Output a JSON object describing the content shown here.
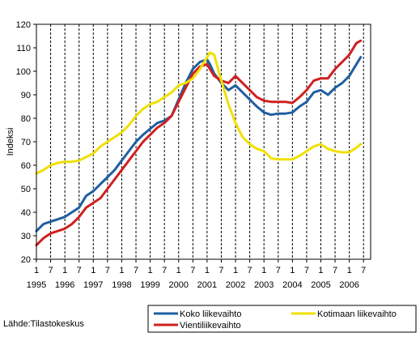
{
  "chart_data": {
    "type": "line",
    "title": "",
    "ylabel": "Indeksi",
    "xlabel": "",
    "ylim": [
      20,
      120
    ],
    "yticks": [
      20,
      30,
      40,
      50,
      60,
      70,
      80,
      90,
      100,
      110,
      120
    ],
    "x_start": 1995.0,
    "x_end": 2006.75,
    "x_tick_labels": [
      "1",
      "7",
      "1",
      "7",
      "1",
      "7",
      "1",
      "7",
      "1",
      "7",
      "1",
      "7",
      "1",
      "7",
      "1",
      "7",
      "1",
      "7",
      "1",
      "7",
      "1",
      "7",
      "1",
      "7"
    ],
    "x_year_labels": [
      "1995",
      "1996",
      "1997",
      "1998",
      "1999",
      "2000",
      "2001",
      "2002",
      "2003",
      "2004",
      "2005",
      "2006"
    ],
    "grid": "vertical-dashed",
    "legend_position": "bottom",
    "source": "Lähde:Tilastokeskus",
    "series": [
      {
        "name": "Koko liikevaihto",
        "color": "#1f5fa0",
        "x": [
          1995.0,
          1995.25,
          1995.5,
          1995.75,
          1996.0,
          1996.25,
          1996.5,
          1996.75,
          1997.0,
          1997.25,
          1997.5,
          1997.75,
          1998.0,
          1998.25,
          1998.5,
          1998.75,
          1999.0,
          1999.25,
          1999.5,
          1999.75,
          2000.0,
          2000.25,
          2000.5,
          2000.75,
          2001.0,
          2001.1,
          2001.25,
          2001.5,
          2001.75,
          2002.0,
          2002.25,
          2002.5,
          2002.75,
          2003.0,
          2003.25,
          2003.5,
          2003.75,
          2004.0,
          2004.25,
          2004.5,
          2004.75,
          2005.0,
          2005.25,
          2005.5,
          2005.75,
          2006.0,
          2006.25,
          2006.4
        ],
        "y": [
          32,
          35,
          36,
          37,
          38,
          40,
          42,
          47,
          49,
          52,
          55,
          58,
          62,
          66,
          70,
          73,
          75.5,
          78,
          79,
          81,
          88,
          95,
          101,
          104,
          105,
          103,
          99,
          95,
          92,
          94,
          91,
          88,
          85,
          82.5,
          81.5,
          82,
          82,
          82.5,
          85,
          87,
          91,
          92,
          90,
          93,
          95,
          98,
          103,
          106
        ]
      },
      {
        "name": "Vientiliikevaihto",
        "color": "#d02020",
        "x": [
          1995.0,
          1995.25,
          1995.5,
          1995.75,
          1996.0,
          1996.25,
          1996.5,
          1996.75,
          1997.0,
          1997.25,
          1997.5,
          1997.75,
          1998.0,
          1998.25,
          1998.5,
          1998.75,
          1999.0,
          1999.25,
          1999.5,
          1999.75,
          2000.0,
          2000.25,
          2000.5,
          2000.75,
          2001.0,
          2001.1,
          2001.25,
          2001.5,
          2001.75,
          2002.0,
          2002.25,
          2002.5,
          2002.75,
          2003.0,
          2003.25,
          2003.5,
          2003.75,
          2004.0,
          2004.25,
          2004.5,
          2004.75,
          2005.0,
          2005.25,
          2005.5,
          2005.75,
          2006.0,
          2006.25,
          2006.4
        ],
        "y": [
          26,
          29,
          31,
          32,
          33,
          35,
          38,
          42,
          44,
          46,
          50,
          54,
          58,
          62,
          66,
          70,
          73,
          76,
          78,
          81,
          87,
          93,
          99,
          102,
          103,
          101,
          98,
          96,
          95,
          98,
          95,
          92,
          89,
          87.5,
          87,
          87,
          87,
          86.5,
          89,
          92,
          96,
          97,
          97,
          101,
          104,
          107,
          112,
          113
        ]
      },
      {
        "name": "Kotimaan liikevaihto",
        "color": "#f0e000",
        "x": [
          1995.0,
          1995.25,
          1995.5,
          1995.75,
          1996.0,
          1996.25,
          1996.5,
          1996.75,
          1997.0,
          1997.25,
          1997.5,
          1997.75,
          1998.0,
          1998.25,
          1998.5,
          1998.75,
          1999.0,
          1999.25,
          1999.5,
          1999.75,
          2000.0,
          2000.25,
          2000.5,
          2000.75,
          2001.0,
          2001.1,
          2001.25,
          2001.5,
          2001.75,
          2002.0,
          2002.25,
          2002.5,
          2002.75,
          2003.0,
          2003.25,
          2003.5,
          2003.75,
          2004.0,
          2004.25,
          2004.5,
          2004.75,
          2005.0,
          2005.25,
          2005.5,
          2005.75,
          2006.0,
          2006.25,
          2006.4
        ],
        "y": [
          56.5,
          58,
          60,
          61,
          61.5,
          61.5,
          62,
          63.5,
          65,
          68,
          70,
          72,
          74,
          77,
          81,
          84,
          86,
          87,
          89,
          91,
          94,
          95,
          97,
          101,
          106,
          108,
          107,
          96,
          86,
          78,
          72,
          69,
          67,
          66,
          63,
          62.5,
          62.5,
          62.5,
          64,
          66,
          68,
          69,
          67,
          66,
          65.5,
          65.5,
          67.5,
          69
        ]
      }
    ]
  }
}
